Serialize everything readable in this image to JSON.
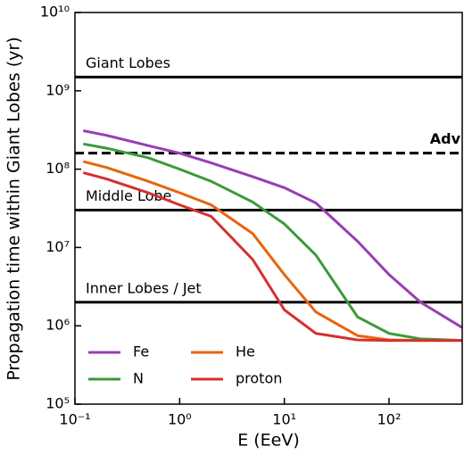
{
  "chart_data": {
    "type": "line",
    "xlabel": "E (EeV)",
    "ylabel": "Propagation time within Giant Lobes (yr)",
    "xscale": "log",
    "yscale": "log",
    "xlim": [
      0.1,
      500
    ],
    "ylim": [
      100000,
      10000000000
    ],
    "xticks": [
      {
        "value": 0.1,
        "label": "10⁻¹"
      },
      {
        "value": 1,
        "label": "10⁰"
      },
      {
        "value": 10,
        "label": "10¹"
      },
      {
        "value": 100,
        "label": "10²"
      }
    ],
    "yticks": [
      {
        "value": 100000,
        "label": "10⁵"
      },
      {
        "value": 1000000,
        "label": "10⁶"
      },
      {
        "value": 10000000,
        "label": "10⁷"
      },
      {
        "value": 100000000,
        "label": "10⁸"
      },
      {
        "value": 1000000000,
        "label": "10⁹"
      },
      {
        "value": 10000000000,
        "label": "10¹⁰"
      }
    ],
    "x": [
      0.12,
      0.2,
      0.5,
      1,
      2,
      5,
      10,
      20,
      50,
      100,
      200,
      500
    ],
    "series": [
      {
        "name": "Fe",
        "color": "#9a3db4",
        "values": [
          310000000,
          270000000,
          200000000,
          160000000,
          120000000,
          80000000,
          58000000,
          37000000,
          12000000,
          4500000,
          2000000,
          950000
        ]
      },
      {
        "name": "N",
        "color": "#3a9a3a",
        "values": [
          210000000,
          185000000,
          140000000,
          100000000,
          70000000,
          38000000,
          20000000,
          8000000,
          1300000,
          800000,
          680000,
          650000
        ]
      },
      {
        "name": "He",
        "color": "#e8650c",
        "values": [
          125000000,
          105000000,
          70000000,
          50000000,
          35000000,
          15000000,
          4500000,
          1500000,
          750000,
          660000,
          650000,
          650000
        ]
      },
      {
        "name": "proton",
        "color": "#d62f2f",
        "values": [
          90000000,
          75000000,
          50000000,
          35000000,
          25000000,
          7000000,
          1600000,
          800000,
          660000,
          650000,
          650000,
          650000
        ]
      }
    ],
    "reference_lines": [
      {
        "label": "Giant Lobes",
        "value": 1500000000,
        "style": "solid"
      },
      {
        "label": "Adv",
        "value": 160000000,
        "style": "dashed"
      },
      {
        "label": "Middle Lobe",
        "value": 30000000,
        "style": "solid"
      },
      {
        "label": "Inner Lobes / Jet",
        "value": 2000000,
        "style": "solid"
      }
    ],
    "legend": "lower left"
  }
}
